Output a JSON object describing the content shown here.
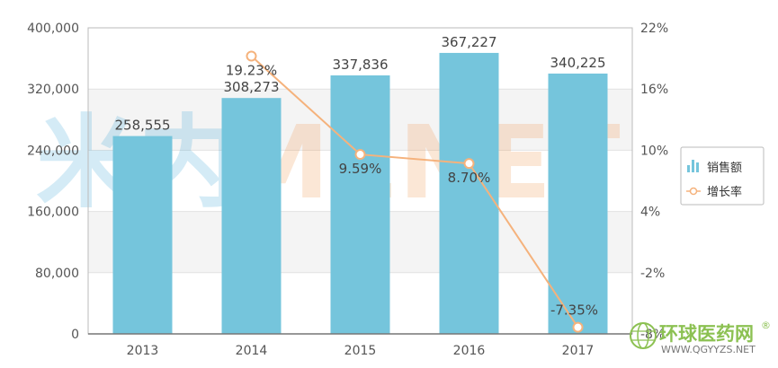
{
  "chart_data": {
    "type": "bar",
    "categories": [
      "2013",
      "2014",
      "2015",
      "2016",
      "2017"
    ],
    "series": [
      {
        "name": "销售额",
        "type": "bar",
        "axis": "left",
        "values": [
          258555,
          308273,
          337836,
          367227,
          340225
        ],
        "labels": [
          "258,555",
          "308,273",
          "337,836",
          "367,227",
          "340,225"
        ],
        "color": "#75c5dc"
      },
      {
        "name": "增长率",
        "type": "line",
        "axis": "right",
        "values": [
          null,
          19.23,
          9.59,
          8.7,
          -7.35
        ],
        "labels": [
          "",
          "19.23%",
          "9.59%",
          "8.70%",
          "-7.35%"
        ],
        "color": "#f5b27c"
      }
    ],
    "y_left": {
      "range": [
        0,
        400000
      ],
      "ticks": [
        "0",
        "80,000",
        "160,000",
        "240,000",
        "320,000",
        "400,000"
      ]
    },
    "y_right": {
      "range": [
        -8,
        22
      ],
      "ticks": [
        "-8%",
        "-2%",
        "4%",
        "10%",
        "16%",
        "22%"
      ]
    },
    "grid": true,
    "legend_position": "right"
  },
  "watermarks": {
    "main": "MENET",
    "site_name": "环球医药网",
    "site_url": "WWW.QGYYZS.NET",
    "registered": "®"
  }
}
